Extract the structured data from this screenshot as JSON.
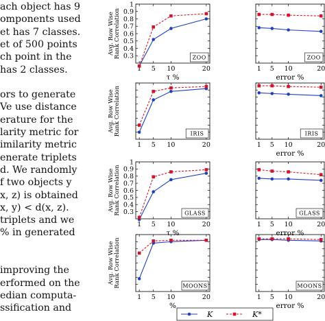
{
  "paper_text": {
    "lines": [
      "ach object has 9",
      "omponents used",
      "et has 7 classes.",
      "et of 500 points",
      "ch point in the",
      "has 2 classes.",
      "",
      "ors to generate",
      "Ve use distance",
      "erature for the",
      "larity metric for",
      "imilarity metric",
      "enerate triplets",
      "d. We randomly",
      "f two objects y",
      "x, z) is obtained",
      "x, y) < d(x, z).",
      "triplets and we",
      "% in generated",
      "",
      "",
      "improving the",
      "erformed on the",
      "edian computa-",
      "ssification and"
    ]
  },
  "chart_data": [
    {
      "type": "line",
      "dataset_label": "ZOO",
      "xlabel": "τ %",
      "ylabel": "Avg. Row Wise\nRank Correlation",
      "x": [
        1,
        5,
        10,
        20
      ],
      "xticks": [
        "1",
        "5",
        "10",
        "20"
      ],
      "ylim": [
        0.2,
        1.0
      ],
      "yticks": [
        "0.3",
        "0.4",
        "0.5",
        "0.6",
        "0.7",
        "0.8",
        "0.9",
        "1"
      ],
      "series": [
        {
          "name": "K",
          "values": [
            0.16,
            0.52,
            0.67,
            0.8
          ]
        },
        {
          "name": "K*",
          "values": [
            0.16,
            0.69,
            0.84,
            0.87
          ]
        }
      ]
    },
    {
      "type": "line",
      "dataset_label": "ZOO",
      "xlabel": "error %",
      "ylabel": "",
      "x": [
        1,
        5,
        10,
        20
      ],
      "xticks": [
        "1",
        "5",
        "10",
        "20"
      ],
      "ylim": [
        0.2,
        1.0
      ],
      "yticks": [],
      "series": [
        {
          "name": "K",
          "values": [
            0.68,
            0.67,
            0.65,
            0.63
          ]
        },
        {
          "name": "K*",
          "values": [
            0.86,
            0.86,
            0.85,
            0.84
          ]
        }
      ]
    },
    {
      "type": "line",
      "dataset_label": "IRIS",
      "xlabel": "",
      "ylabel": "Avg. Row Wise\nRank Correlation",
      "x": [
        1,
        5,
        10,
        20
      ],
      "xticks": [
        "1",
        "5",
        "10",
        "20"
      ],
      "ylim": [
        0.2,
        1.0
      ],
      "yticks": [],
      "series": [
        {
          "name": "K",
          "values": [
            0.3,
            0.76,
            0.88,
            0.92
          ]
        },
        {
          "name": "K*",
          "values": [
            0.4,
            0.88,
            0.93,
            0.95
          ]
        }
      ]
    },
    {
      "type": "line",
      "dataset_label": "IRIS",
      "xlabel": "error %",
      "ylabel": "",
      "x": [
        1,
        5,
        10,
        20
      ],
      "xticks": [
        "1",
        "5",
        "10",
        "20"
      ],
      "ylim": [
        0.2,
        1.0
      ],
      "yticks": [],
      "series": [
        {
          "name": "K",
          "values": [
            0.86,
            0.85,
            0.84,
            0.82
          ]
        },
        {
          "name": "K*",
          "values": [
            0.96,
            0.96,
            0.95,
            0.94
          ]
        }
      ]
    },
    {
      "type": "line",
      "dataset_label": "GLASS",
      "xlabel": "τ %",
      "ylabel": "Avg. Row Wise\nRank Correlation",
      "x": [
        1,
        5,
        10,
        20
      ],
      "xticks": [
        "1",
        "5",
        "10",
        "20"
      ],
      "ylim": [
        0.2,
        1.0
      ],
      "yticks": [
        "0.3",
        "0.4",
        "0.5",
        "0.6",
        "0.7",
        "0.8",
        "0.9",
        "1"
      ],
      "series": [
        {
          "name": "K",
          "values": [
            0.19,
            0.58,
            0.75,
            0.84
          ]
        },
        {
          "name": "K*",
          "values": [
            0.22,
            0.79,
            0.86,
            0.89
          ]
        }
      ]
    },
    {
      "type": "line",
      "dataset_label": "GLASS",
      "xlabel": "error %",
      "ylabel": "",
      "x": [
        1,
        5,
        10,
        20
      ],
      "xticks": [
        "1",
        "5",
        "10",
        "20"
      ],
      "ylim": [
        0.2,
        1.0
      ],
      "yticks": [],
      "series": [
        {
          "name": "K",
          "values": [
            0.77,
            0.76,
            0.76,
            0.74
          ]
        },
        {
          "name": "K*",
          "values": [
            0.89,
            0.87,
            0.86,
            0.82
          ]
        }
      ]
    },
    {
      "type": "line",
      "dataset_label": "MOONS",
      "xlabel": "%",
      "ylabel": "Avg. Row Wise\nRank Correlation",
      "x": [
        1,
        5,
        10,
        20
      ],
      "xticks": [
        "1",
        "5",
        "10",
        "20"
      ],
      "ylim": [
        0.2,
        1.0
      ],
      "yticks": [],
      "series": [
        {
          "name": "K",
          "values": [
            0.38,
            0.88,
            0.9,
            0.92
          ]
        },
        {
          "name": "K*",
          "values": [
            0.74,
            0.91,
            0.92,
            0.92
          ]
        }
      ]
    },
    {
      "type": "line",
      "dataset_label": "MOONS",
      "xlabel": "error %",
      "ylabel": "",
      "x": [
        1,
        5,
        10,
        20
      ],
      "xticks": [
        "1",
        "5",
        "10",
        "20"
      ],
      "ylim": [
        0.2,
        1.0
      ],
      "yticks": [],
      "series": [
        {
          "name": "K",
          "values": [
            0.93,
            0.93,
            0.92,
            0.91
          ]
        },
        {
          "name": "K*",
          "values": [
            0.94,
            0.94,
            0.94,
            0.93
          ]
        }
      ]
    }
  ],
  "legend": {
    "items": [
      {
        "label": "K",
        "color": "#1f3fbf",
        "marker": "circle",
        "dash": "solid"
      },
      {
        "label": "K*",
        "color": "#d0142c",
        "marker": "square",
        "dash": "dashed"
      }
    ]
  }
}
